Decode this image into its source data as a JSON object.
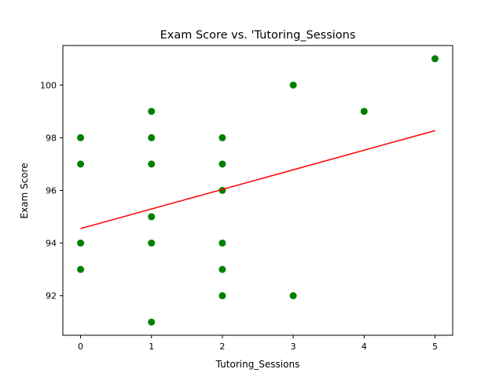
{
  "chart_data": {
    "type": "scatter",
    "title": "Exam Score vs. 'Tutoring_Sessions",
    "xlabel": "Tutoring_Sessions",
    "ylabel": "Exam Score",
    "xlim": [
      -0.25,
      5.25
    ],
    "ylim": [
      90.5,
      101.5
    ],
    "xticks": [
      0,
      1,
      2,
      3,
      4,
      5
    ],
    "yticks": [
      92,
      94,
      96,
      98,
      100
    ],
    "grid": false,
    "point_color": "#008000",
    "line_color": "#ff0000",
    "points": [
      {
        "x": 0,
        "y": 98
      },
      {
        "x": 0,
        "y": 97
      },
      {
        "x": 0,
        "y": 94
      },
      {
        "x": 0,
        "y": 93
      },
      {
        "x": 1,
        "y": 99
      },
      {
        "x": 1,
        "y": 98
      },
      {
        "x": 1,
        "y": 97
      },
      {
        "x": 1,
        "y": 95
      },
      {
        "x": 1,
        "y": 94
      },
      {
        "x": 1,
        "y": 91
      },
      {
        "x": 2,
        "y": 98
      },
      {
        "x": 2,
        "y": 97
      },
      {
        "x": 2,
        "y": 96
      },
      {
        "x": 2,
        "y": 94
      },
      {
        "x": 2,
        "y": 93
      },
      {
        "x": 2,
        "y": 92
      },
      {
        "x": 3,
        "y": 100
      },
      {
        "x": 3,
        "y": 92
      },
      {
        "x": 4,
        "y": 99
      },
      {
        "x": 5,
        "y": 101
      }
    ],
    "trend_line": {
      "x": [
        0,
        5
      ],
      "y": [
        94.55,
        98.27
      ]
    }
  }
}
